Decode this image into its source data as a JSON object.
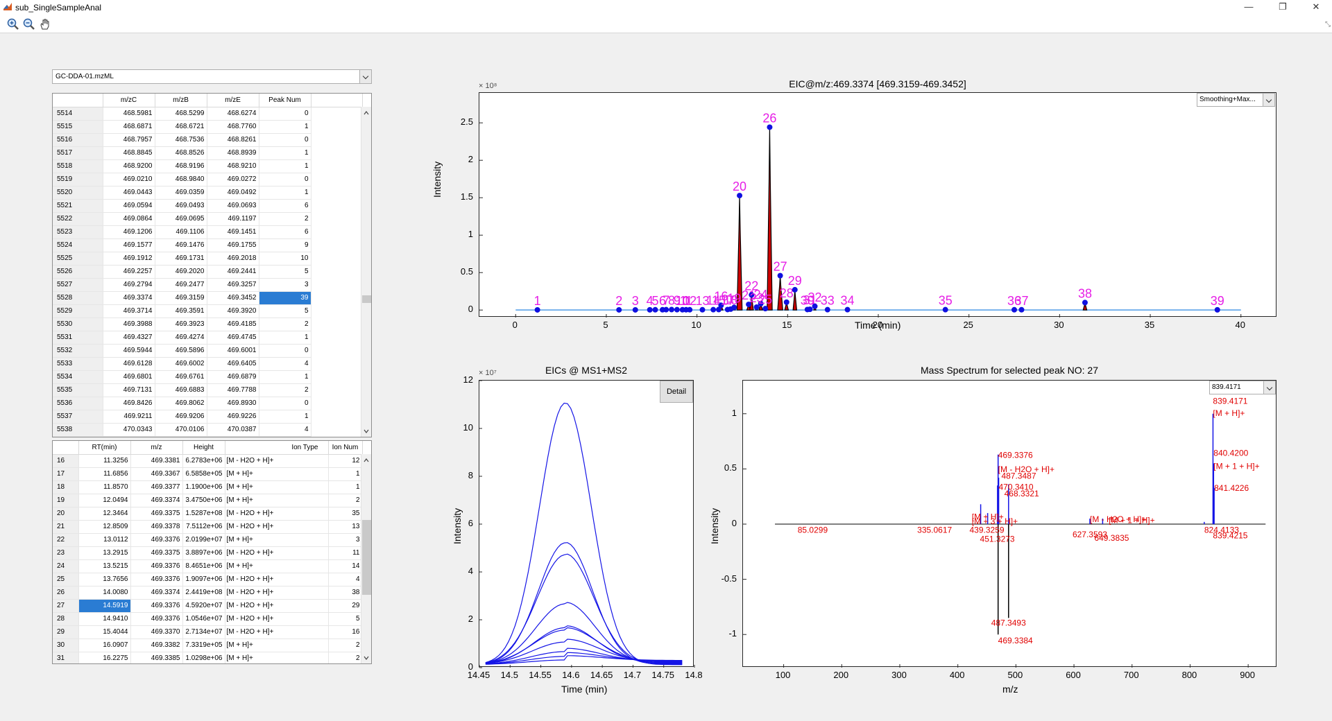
{
  "window": {
    "title": "sub_SingleSampleAnal",
    "minimize": "—",
    "maximize": "❐",
    "close": "✕"
  },
  "toolbar": {
    "tools": [
      "zoom-in-icon",
      "zoom-out-icon",
      "pan-hand-icon"
    ]
  },
  "file_dropdown": {
    "value": "GC-DDA-01.mzML"
  },
  "mz_table": {
    "columns": [
      "m/zC",
      "m/zB",
      "m/zE",
      "Peak Num"
    ],
    "rows": [
      [
        "5514",
        "468.5981",
        "468.5299",
        "468.6274",
        "0"
      ],
      [
        "5515",
        "468.6871",
        "468.6721",
        "468.7760",
        "1"
      ],
      [
        "5516",
        "468.7957",
        "468.7536",
        "468.8261",
        "0"
      ],
      [
        "5517",
        "468.8845",
        "468.8526",
        "468.8939",
        "1"
      ],
      [
        "5518",
        "468.9200",
        "468.9196",
        "468.9210",
        "1"
      ],
      [
        "5519",
        "469.0210",
        "468.9840",
        "469.0272",
        "0"
      ],
      [
        "5520",
        "469.0443",
        "469.0359",
        "469.0492",
        "1"
      ],
      [
        "5521",
        "469.0594",
        "469.0493",
        "469.0693",
        "6"
      ],
      [
        "5522",
        "469.0864",
        "469.0695",
        "469.1197",
        "2"
      ],
      [
        "5523",
        "469.1206",
        "469.1106",
        "469.1451",
        "6"
      ],
      [
        "5524",
        "469.1577",
        "469.1476",
        "469.1755",
        "9"
      ],
      [
        "5525",
        "469.1912",
        "469.1731",
        "469.2018",
        "10"
      ],
      [
        "5526",
        "469.2257",
        "469.2020",
        "469.2441",
        "5"
      ],
      [
        "5527",
        "469.2794",
        "469.2477",
        "469.3257",
        "3"
      ],
      [
        "5528",
        "469.3374",
        "469.3159",
        "469.3452",
        "39"
      ],
      [
        "5529",
        "469.3714",
        "469.3591",
        "469.3920",
        "5"
      ],
      [
        "5530",
        "469.3988",
        "469.3923",
        "469.4185",
        "2"
      ],
      [
        "5531",
        "469.4327",
        "469.4274",
        "469.4745",
        "1"
      ],
      [
        "5532",
        "469.5944",
        "469.5896",
        "469.6001",
        "0"
      ],
      [
        "5533",
        "469.6128",
        "469.6002",
        "469.6405",
        "4"
      ],
      [
        "5534",
        "469.6801",
        "469.6761",
        "469.6879",
        "1"
      ],
      [
        "5535",
        "469.7131",
        "469.6883",
        "469.7788",
        "2"
      ],
      [
        "5536",
        "469.8426",
        "469.8062",
        "469.8930",
        "0"
      ],
      [
        "5537",
        "469.9211",
        "469.9206",
        "469.9226",
        "1"
      ],
      [
        "5538",
        "470.0343",
        "470.0106",
        "470.0387",
        "4"
      ]
    ],
    "selected_row": 14
  },
  "peak_table": {
    "columns": [
      "RT(min)",
      "m/z",
      "Height",
      "Ion Type",
      "Ion Num"
    ],
    "rows": [
      [
        "16",
        "11.3256",
        "469.3381",
        "6.2783e+06",
        "[M - H2O + H]+",
        "12"
      ],
      [
        "17",
        "11.6856",
        "469.3367",
        "6.5858e+05",
        "[M + H]+",
        "1"
      ],
      [
        "18",
        "11.8570",
        "469.3377",
        "1.1900e+06",
        "[M + H]+",
        "1"
      ],
      [
        "19",
        "12.0494",
        "469.3374",
        "3.4750e+06",
        "[M + H]+",
        "2"
      ],
      [
        "20",
        "12.3464",
        "469.3375",
        "1.5287e+08",
        "[M - H2O + H]+",
        "35"
      ],
      [
        "21",
        "12.8509",
        "469.3378",
        "7.5112e+06",
        "[M - H2O + H]+",
        "13"
      ],
      [
        "22",
        "13.0112",
        "469.3376",
        "2.0199e+07",
        "[M + H]+",
        "3"
      ],
      [
        "23",
        "13.2915",
        "469.3375",
        "3.8897e+06",
        "[M - H2O + H]+",
        "11"
      ],
      [
        "24",
        "13.5215",
        "469.3376",
        "8.4651e+06",
        "[M + H]+",
        "14"
      ],
      [
        "25",
        "13.7656",
        "469.3376",
        "1.9097e+06",
        "[M - H2O + H]+",
        "4"
      ],
      [
        "26",
        "14.0080",
        "469.3374",
        "2.4419e+08",
        "[M - H2O + H]+",
        "38"
      ],
      [
        "27",
        "14.5919",
        "469.3376",
        "4.5920e+07",
        "[M - H2O + H]+",
        "29"
      ],
      [
        "28",
        "14.9410",
        "469.3376",
        "1.0546e+07",
        "[M - H2O + H]+",
        "5"
      ],
      [
        "29",
        "15.4044",
        "469.3370",
        "2.7134e+07",
        "[M - H2O + H]+",
        "16"
      ],
      [
        "30",
        "16.0907",
        "469.3382",
        "7.3319e+05",
        "[M + H]+",
        "2"
      ],
      [
        "31",
        "16.2275",
        "469.3385",
        "1.0298e+06",
        "[M + H]+",
        "2"
      ]
    ],
    "selected_row": 11
  },
  "eic_plot": {
    "title": "EIC@m/z:469.3374 [469.3159-469.3452]",
    "xlabel": "Time (min)",
    "ylabel": "Intensity",
    "exponent": "× 10⁸",
    "dropdown": "Smoothing+Max...",
    "xticks": [
      "0",
      "5",
      "10",
      "15",
      "20",
      "25",
      "30",
      "35",
      "40"
    ],
    "yticks": [
      "0",
      "0.5",
      "1",
      "1.5",
      "2",
      "2.5"
    ],
    "peak_labels": [
      "1",
      "2",
      "3",
      "4",
      "5",
      "6",
      "7",
      "8",
      "9",
      "10",
      "11",
      "12",
      "13",
      "14",
      "15",
      "16",
      "17",
      "18",
      "19",
      "20",
      "21",
      "22",
      "23",
      "24",
      "25",
      "26",
      "27",
      "28",
      "29",
      "30",
      "31",
      "32",
      "33",
      "34",
      "35",
      "36",
      "37",
      "38",
      "39"
    ]
  },
  "eics_plot": {
    "title": "EICs @ MS1+MS2",
    "xlabel": "Time (min)",
    "ylabel": "Intensity",
    "exponent": "× 10⁷",
    "detail_button": "Detail",
    "xticks": [
      "14.45",
      "14.5",
      "14.55",
      "14.6",
      "14.65",
      "14.7",
      "14.75",
      "14.8"
    ],
    "yticks": [
      "0",
      "2",
      "4",
      "6",
      "8",
      "10",
      "12"
    ]
  },
  "ms_plot": {
    "title": "Mass Spectrum for selected peak NO: 27",
    "xlabel": "m/z",
    "ylabel": "Intensity",
    "dropdown": "839.4171",
    "xticks": [
      "100",
      "200",
      "300",
      "400",
      "500",
      "600",
      "700",
      "800",
      "900"
    ],
    "yticks": [
      "-1",
      "-0.5",
      "0",
      "0.5",
      "1"
    ],
    "annotations": [
      "839.4171",
      "[M + H]+",
      "840.4200",
      "[M + 1 + H]+",
      "841.4226",
      "469.3376",
      "[M - H2O + H]+",
      "487.3487",
      "470.3410",
      "468.3321",
      "439.3259",
      "451.3273",
      "627.3593",
      "649.3835",
      "487.3493",
      "469.3384",
      "85.0299",
      "335.0617",
      "824.4133",
      "839.4215",
      "[M - H2O + H]+",
      "[M + 1 + H]+",
      "[M + H]+",
      "[M + 3 + H]+"
    ]
  },
  "chart_data": [
    {
      "type": "line",
      "title": "EIC@m/z:469.3374 [469.3159-469.3452]",
      "xlabel": "Time (min)",
      "ylabel": "Intensity",
      "xlim": [
        -2,
        42
      ],
      "ylim": [
        -0.1,
        2.9
      ],
      "y_scale": "×10^8",
      "peaks": [
        [
          1.2,
          0.002
        ],
        [
          5.7,
          0.002
        ],
        [
          6.6,
          0.002
        ],
        [
          7.4,
          0.003
        ],
        [
          7.7,
          0.004
        ],
        [
          8.1,
          0.004
        ],
        [
          8.3,
          0.005
        ],
        [
          8.6,
          0.006
        ],
        [
          8.9,
          0.005
        ],
        [
          9.2,
          0.004
        ],
        [
          9.4,
          0.004
        ],
        [
          9.6,
          0.004
        ],
        [
          10.3,
          0.004
        ],
        [
          10.9,
          0.005
        ],
        [
          11.2,
          0.006
        ],
        [
          11.33,
          0.063
        ],
        [
          11.69,
          0.007
        ],
        [
          11.86,
          0.012
        ],
        [
          12.05,
          0.035
        ],
        [
          12.35,
          1.529
        ],
        [
          12.85,
          0.075
        ],
        [
          13.01,
          0.202
        ],
        [
          13.29,
          0.039
        ],
        [
          13.52,
          0.085
        ],
        [
          13.77,
          0.019
        ],
        [
          14.01,
          2.442
        ],
        [
          14.59,
          0.459
        ],
        [
          14.94,
          0.105
        ],
        [
          15.4,
          0.271
        ],
        [
          16.09,
          0.007
        ],
        [
          16.23,
          0.01
        ],
        [
          16.5,
          0.05
        ],
        [
          17.2,
          0.005
        ],
        [
          18.3,
          0.005
        ],
        [
          23.7,
          0.005
        ],
        [
          27.5,
          0.004
        ],
        [
          27.9,
          0.004
        ],
        [
          31.4,
          0.1
        ],
        [
          38.7,
          0.003
        ]
      ]
    },
    {
      "type": "line",
      "title": "EICs @ MS1+MS2",
      "xlabel": "Time (min)",
      "ylabel": "Intensity",
      "xlim": [
        14.45,
        14.8
      ],
      "ylim": [
        0,
        12
      ],
      "y_scale": "×10^7",
      "center": 14.59,
      "series": [
        {
          "peak": 10.95
        },
        {
          "peak": 5.1
        },
        {
          "peak": 4.6
        },
        {
          "peak": 2.55
        },
        {
          "peak": 1.55
        },
        {
          "peak": 1.45
        },
        {
          "peak": 0.95
        },
        {
          "peak": 0.55
        },
        {
          "peak": 0.35
        },
        {
          "peak": 0.2
        }
      ]
    },
    {
      "type": "bar",
      "title": "Mass Spectrum for selected peak NO: 27",
      "xlabel": "m/z",
      "ylabel": "Intensity",
      "xlim": [
        30,
        950
      ],
      "ylim": [
        -1.3,
        1.3
      ],
      "positive": [
        [
          469.34,
          0.63
        ],
        [
          470.34,
          0.42
        ],
        [
          487.35,
          0.36
        ],
        [
          468.33,
          0.35
        ],
        [
          439.33,
          0.18
        ],
        [
          451.33,
          0.1
        ],
        [
          627.36,
          0.05
        ],
        [
          649.38,
          0.05
        ],
        [
          839.42,
          1.0
        ],
        [
          840.42,
          0.55
        ],
        [
          841.42,
          0.33
        ],
        [
          824.41,
          0.02
        ]
      ],
      "negative": [
        [
          469.34,
          -1.0
        ],
        [
          487.35,
          -0.85
        ]
      ]
    }
  ]
}
